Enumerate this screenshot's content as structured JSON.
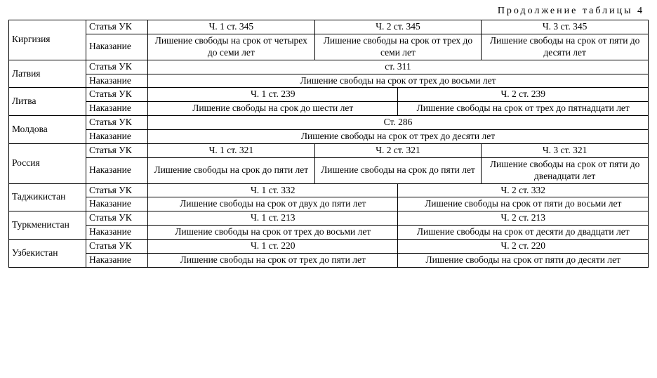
{
  "caption": "Продолжение таблицы 4",
  "labels": {
    "article": "Статья УК",
    "punishment": "Наказание"
  },
  "rows": {
    "kirgizia": {
      "country": "Киргизия",
      "art": [
        "Ч. 1 ст. 345",
        "Ч. 2 ст. 345",
        "Ч. 3 ст. 345"
      ],
      "pun": [
        "Лишение свободы на срок от четырех до семи лет",
        "Лишение свободы на срок от трех до семи лет",
        "Лишение свободы на срок от пяти до десяти лет"
      ]
    },
    "latvia": {
      "country": "Латвия",
      "art_full": "ст. 311",
      "pun_full": "Лишение свободы на срок от трех до восьми лет"
    },
    "litva": {
      "country": "Литва",
      "art2": [
        "Ч. 1 ст. 239",
        "Ч. 2 ст. 239"
      ],
      "pun2": [
        "Лишение свободы на срок до шести лет",
        "Лишение свободы на срок от трех до пятнадцати лет"
      ]
    },
    "moldova": {
      "country": "Молдова",
      "art_full": "Ст. 286",
      "pun_full": "Лишение свободы на срок от трех до десяти лет"
    },
    "russia": {
      "country": "Россия",
      "art": [
        "Ч. 1 ст. 321",
        "Ч. 2 ст. 321",
        "Ч. 3 ст. 321"
      ],
      "pun": [
        "Лишение свободы на срок до пяти лет",
        "Лишение свободы на срок до пяти лет",
        "Лишение свободы на срок от пяти до двенадцати лет"
      ]
    },
    "tajikistan": {
      "country": "Таджикистан",
      "art2": [
        "Ч. 1 ст. 332",
        "Ч. 2 ст. 332"
      ],
      "pun2": [
        "Лишение свободы на срок от двух до пяти лет",
        "Лишение свободы на срок от пяти до восьми лет"
      ]
    },
    "turkmenistan": {
      "country": "Туркменистан",
      "art2": [
        "Ч. 1 ст. 213",
        "Ч. 2 ст. 213"
      ],
      "pun2": [
        "Лишение свободы на срок от трех до восьми лет",
        "Лишение свободы на срок от десяти до двадцати лет"
      ]
    },
    "uzbekistan": {
      "country": "Узбекистан",
      "art2": [
        "Ч. 1 ст. 220",
        "Ч. 2 ст. 220"
      ],
      "pun2": [
        "Лишение свободы на срок от трех до пяти лет",
        "Лишение свободы на срок от пяти до десяти лет"
      ]
    }
  }
}
